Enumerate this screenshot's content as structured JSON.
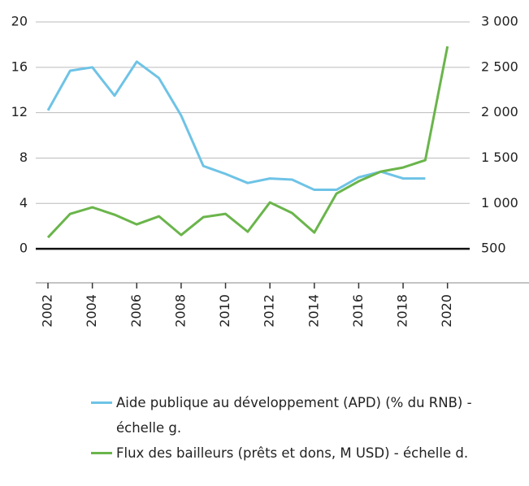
{
  "chart_data": {
    "type": "line",
    "x": [
      2002,
      2003,
      2004,
      2005,
      2006,
      2007,
      2008,
      2009,
      2010,
      2011,
      2012,
      2013,
      2014,
      2015,
      2016,
      2017,
      2018,
      2019,
      2020
    ],
    "series": [
      {
        "name": "Aide publique au développement (APD) (% du RNB) - échelle g.",
        "color": "#6ec3e6",
        "values": [
          12.2,
          15.7,
          16.0,
          13.5,
          16.5,
          15.05,
          11.75,
          7.3,
          6.6,
          5.8,
          6.2,
          6.1,
          5.2,
          5.2,
          6.3,
          6.8,
          6.2,
          6.2,
          null
        ]
      },
      {
        "name": "Flux des bailleurs (prêts et dons, M USD) - échelle d.",
        "color": "#6ab54b",
        "axis": "y2",
        "values": [
          625,
          885,
          957,
          876,
          769,
          858,
          652,
          849,
          885,
          688,
          1011,
          894,
          679,
          1109,
          1244,
          1351,
          1396,
          1477,
          2731
        ]
      }
    ],
    "xlim": [
      2001.45,
      2021.0
    ],
    "xticks": [
      2002,
      2004,
      2006,
      2008,
      2010,
      2012,
      2014,
      2016,
      2018,
      2020
    ],
    "ylim": [
      -3,
      20
    ],
    "yticks": [
      0,
      4,
      8,
      12,
      16,
      20
    ],
    "y2lim": [
      125,
      3000
    ],
    "y2ticks": [
      500,
      {
        "value": 1000,
        "label": "1 000"
      },
      {
        "value": 1500,
        "label": "1 500"
      },
      {
        "value": 2000,
        "label": "2 000"
      },
      {
        "value": 2500,
        "label": "2 500"
      },
      {
        "value": 3000,
        "label": "3 000"
      }
    ],
    "grid": true
  }
}
